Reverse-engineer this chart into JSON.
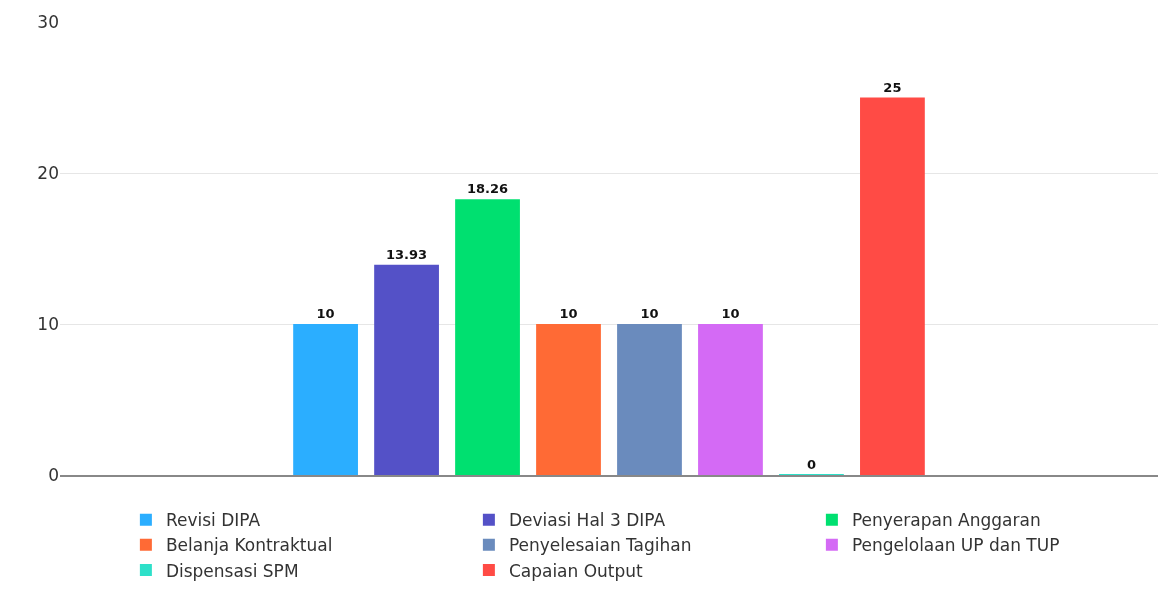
{
  "chart_data": {
    "type": "bar",
    "categories": [
      null
    ],
    "series": [
      {
        "name": "Revisi DIPA",
        "color": "#2baeff",
        "values": [
          10
        ]
      },
      {
        "name": "Deviasi Hal 3 DIPA",
        "color": "#5451c7",
        "values": [
          13.93
        ]
      },
      {
        "name": "Penyerapan Anggaran",
        "color": "#00e070",
        "values": [
          18.26
        ]
      },
      {
        "name": "Belanja Kontraktual",
        "color": "#ff6a35",
        "values": [
          10
        ]
      },
      {
        "name": "Penyelesaian Tagihan",
        "color": "#6a8bbd",
        "values": [
          10
        ]
      },
      {
        "name": "Pengelolaan UP dan TUP",
        "color": "#d46af5",
        "values": [
          10
        ]
      },
      {
        "name": "Dispensasi SPM",
        "color": "#2ee0c9",
        "values": [
          0
        ]
      },
      {
        "name": "Capaian Output",
        "color": "#ff4b45",
        "values": [
          25
        ]
      }
    ],
    "ylim": [
      0,
      30
    ],
    "yticks": [
      0,
      10,
      20,
      30
    ],
    "grid": "y",
    "legend": "bottom",
    "data_labels": true,
    "tick_labels": "y"
  }
}
